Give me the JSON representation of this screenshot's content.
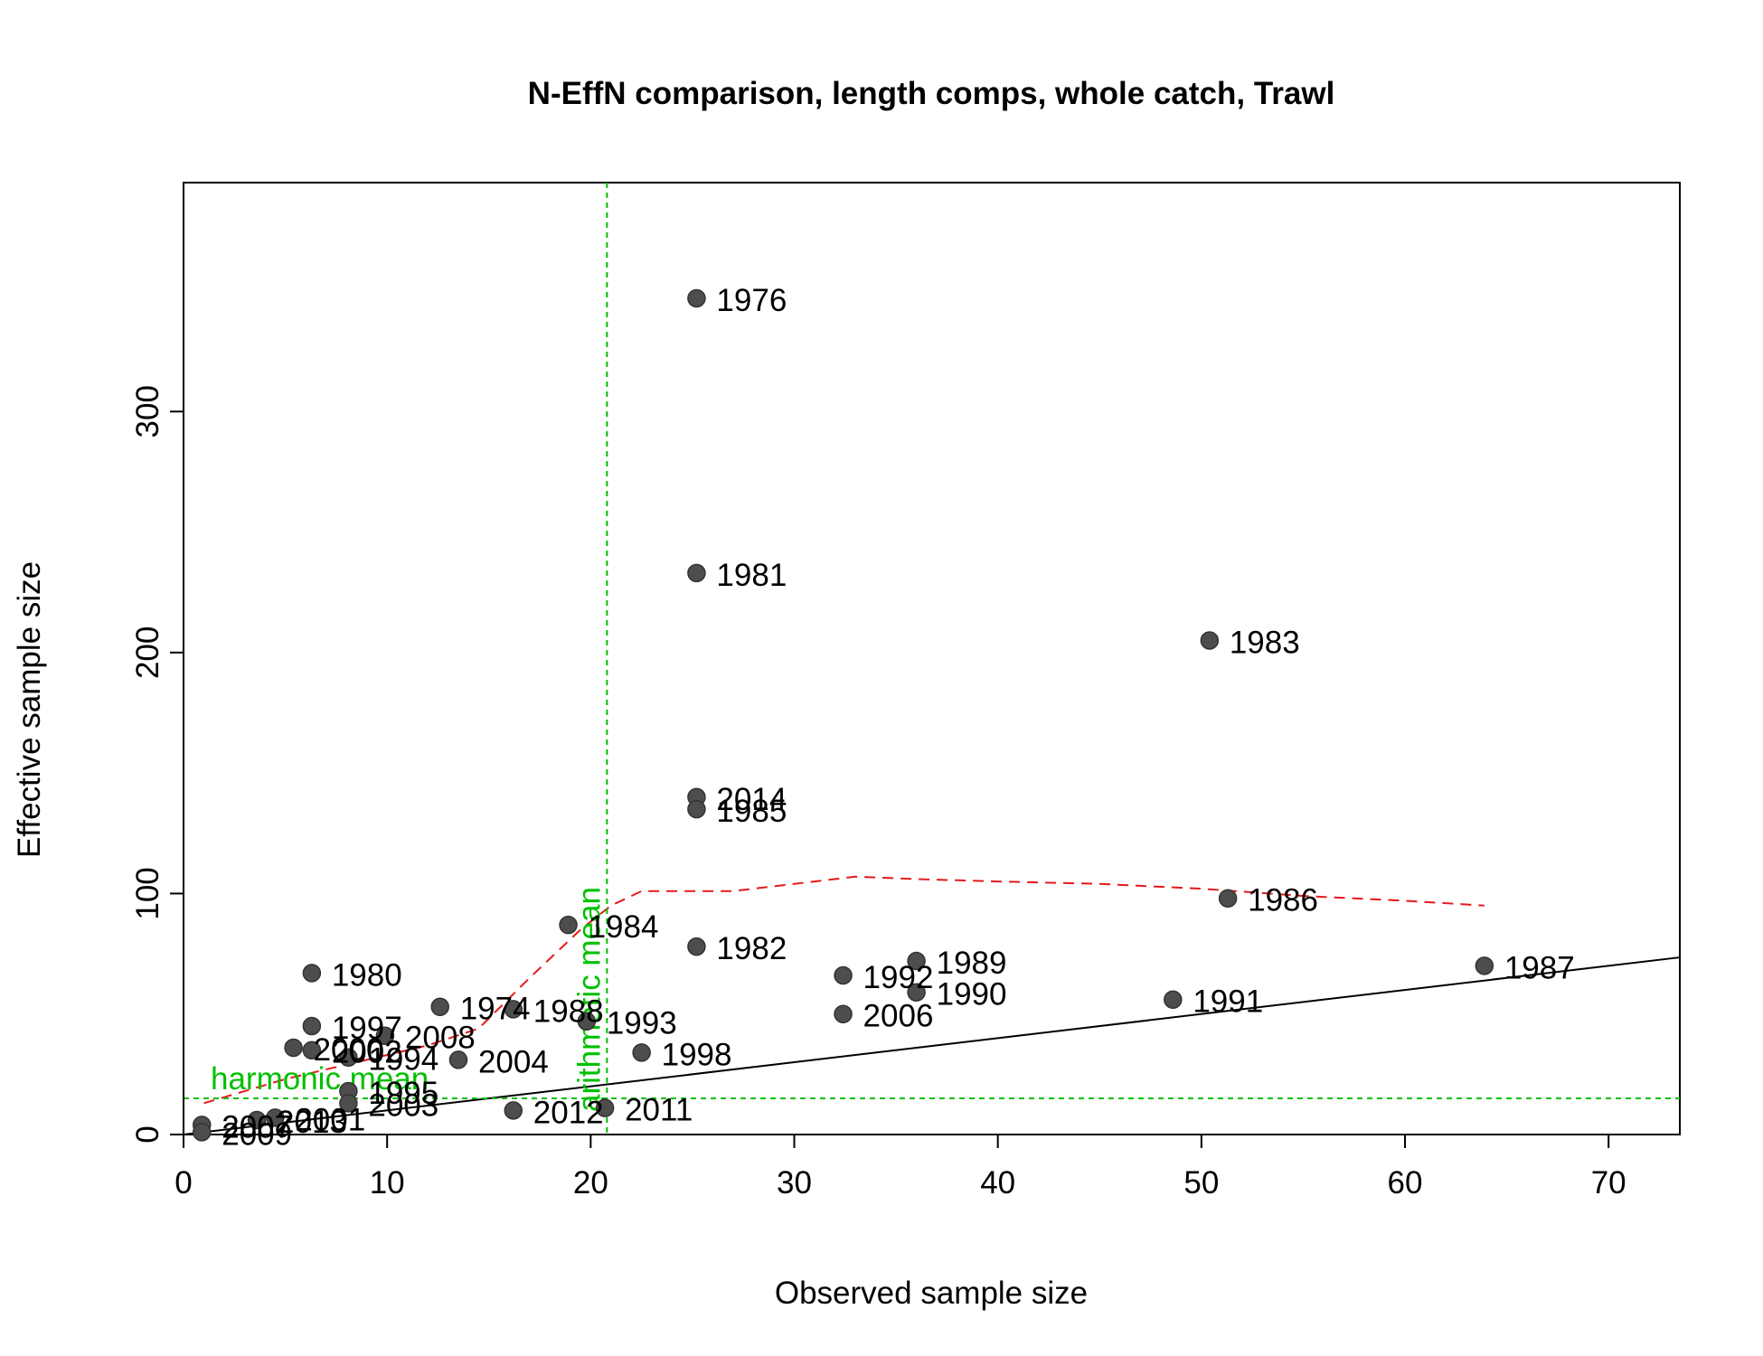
{
  "colors": {
    "points": "#4d4d4d",
    "smoother": "#e41a1c",
    "reference": "#00c000",
    "one_to_one": "#000000"
  },
  "chart_data": {
    "type": "scatter",
    "title": "N-EffN comparison, length comps, whole catch, Trawl",
    "xlabel": "Observed sample size",
    "ylabel": "Effective sample size",
    "xlim": [
      0,
      73.5
    ],
    "ylim": [
      0,
      395
    ],
    "x_ticks": [
      "0",
      "10",
      "20",
      "30",
      "40",
      "50",
      "60",
      "70"
    ],
    "y_ticks": [
      "0",
      "100",
      "200",
      "300"
    ],
    "grid": false,
    "points": [
      {
        "label": "1976",
        "x": 25.2,
        "y": 347
      },
      {
        "label": "1981",
        "x": 25.2,
        "y": 233
      },
      {
        "label": "1983",
        "x": 50.4,
        "y": 205
      },
      {
        "label": "2014",
        "x": 25.2,
        "y": 140
      },
      {
        "label": "1985",
        "x": 25.2,
        "y": 135
      },
      {
        "label": "1986",
        "x": 51.3,
        "y": 98
      },
      {
        "label": "1984",
        "x": 18.9,
        "y": 87
      },
      {
        "label": "1982",
        "x": 25.2,
        "y": 78
      },
      {
        "label": "1989",
        "x": 36.0,
        "y": 72
      },
      {
        "label": "1987",
        "x": 63.9,
        "y": 70
      },
      {
        "label": "1980",
        "x": 6.3,
        "y": 67
      },
      {
        "label": "1992",
        "x": 32.4,
        "y": 66
      },
      {
        "label": "1990",
        "x": 36.0,
        "y": 59
      },
      {
        "label": "1991",
        "x": 48.6,
        "y": 56
      },
      {
        "label": "1974",
        "x": 12.6,
        "y": 53
      },
      {
        "label": "1988",
        "x": 16.2,
        "y": 52
      },
      {
        "label": "2006",
        "x": 32.4,
        "y": 50
      },
      {
        "label": "1993",
        "x": 19.8,
        "y": 47
      },
      {
        "label": "1997",
        "x": 6.3,
        "y": 45
      },
      {
        "label": "2008",
        "x": 9.9,
        "y": 41
      },
      {
        "label": "2000",
        "x": 5.4,
        "y": 36
      },
      {
        "label": "2002",
        "x": 6.3,
        "y": 35
      },
      {
        "label": "1998",
        "x": 22.5,
        "y": 34
      },
      {
        "label": "1994",
        "x": 8.1,
        "y": 32
      },
      {
        "label": "2004",
        "x": 13.5,
        "y": 31
      },
      {
        "label": "1995",
        "x": 8.1,
        "y": 18
      },
      {
        "label": "2003",
        "x": 8.1,
        "y": 13
      },
      {
        "label": "2011",
        "x": 20.7,
        "y": 11
      },
      {
        "label": "2012",
        "x": 16.2,
        "y": 10
      },
      {
        "label": "2001",
        "x": 4.5,
        "y": 7
      },
      {
        "label": "2013",
        "x": 3.6,
        "y": 6
      },
      {
        "label": "2007",
        "x": 0.9,
        "y": 4
      },
      {
        "label": "2009",
        "x": 0.9,
        "y": 1
      }
    ],
    "one_to_one_line": {
      "x": [
        0,
        73.5
      ],
      "y": [
        0,
        73.5
      ]
    },
    "smoother": {
      "x": [
        1.0,
        5.0,
        9.0,
        12.0,
        14.5,
        17.0,
        19.5,
        21.0,
        22.5,
        25.0,
        27.0,
        30.0,
        33.0,
        36.0,
        40.0,
        45.0,
        50.0,
        55.0,
        60.0,
        63.9
      ],
      "y": [
        13,
        23,
        31,
        37,
        44,
        65,
        85,
        95,
        101,
        101,
        101,
        104,
        107,
        106,
        105,
        104,
        102,
        99,
        97,
        95
      ]
    },
    "arithmetic_mean": {
      "label": "arithmetic mean",
      "x": 20.8
    },
    "harmonic_mean": {
      "label": "harmonic mean",
      "y": 15
    }
  }
}
